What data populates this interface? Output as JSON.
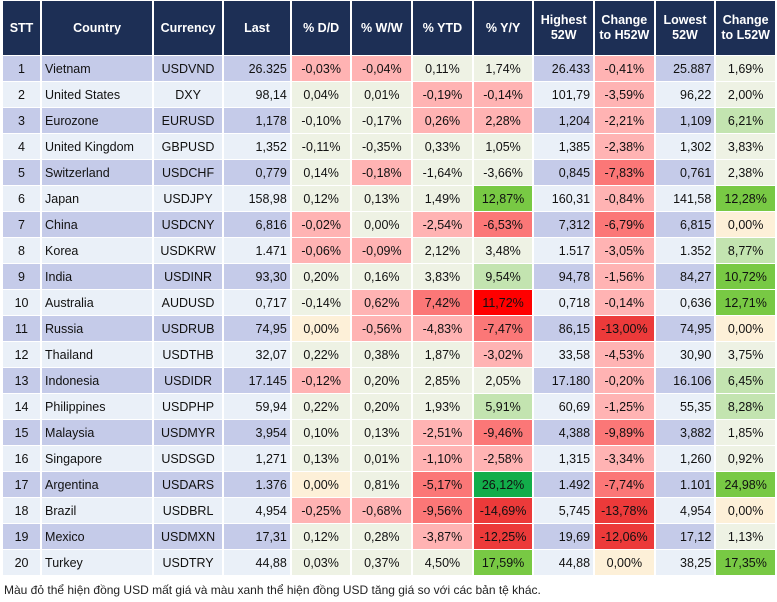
{
  "headers": [
    "STT",
    "Country",
    "Currency",
    "Last",
    "% D/D",
    "% W/W",
    "% YTD",
    "% Y/Y",
    "Highest 52W",
    "Change to H52W",
    "Lowest 52W",
    "Change to L52W"
  ],
  "color_legend": {
    "n": "#eef2e4",
    "y": "#fdf0d8",
    "r1": "#ffb3b3",
    "r2": "#fb7777",
    "r3": "#ec3a3a",
    "r4": "#ff0000",
    "g1": "#c3e4b0",
    "g2": "#78c944",
    "g3": "#12ad4a"
  },
  "rows": [
    {
      "stt": "1",
      "country": "Vietnam",
      "currency": "USDVND",
      "last": "26.325",
      "dd": "-0,03%",
      "ww": "-0,04%",
      "ytd": "0,11%",
      "yy": "1,74%",
      "high": "26.433",
      "chh": "-0,41%",
      "low": "25.887",
      "chl": "1,69%",
      "colors": [
        "r1",
        "r1",
        "n",
        "n",
        "r1",
        "n"
      ]
    },
    {
      "stt": "2",
      "country": "United States",
      "currency": "DXY",
      "last": "98,14",
      "dd": "0,04%",
      "ww": "0,01%",
      "ytd": "-0,19%",
      "yy": "-0,14%",
      "high": "101,79",
      "chh": "-3,59%",
      "low": "96,22",
      "chl": "2,00%",
      "colors": [
        "n",
        "n",
        "r1",
        "r1",
        "r1",
        "n"
      ]
    },
    {
      "stt": "3",
      "country": "Eurozone",
      "currency": "EURUSD",
      "last": "1,178",
      "dd": "-0,10%",
      "ww": "-0,17%",
      "ytd": "0,26%",
      "yy": "2,28%",
      "high": "1,204",
      "chh": "-2,21%",
      "low": "1,109",
      "chl": "6,21%",
      "colors": [
        "n",
        "n",
        "r1",
        "r1",
        "r1",
        "g1"
      ]
    },
    {
      "stt": "4",
      "country": "United Kingdom",
      "currency": "GBPUSD",
      "last": "1,352",
      "dd": "-0,11%",
      "ww": "-0,35%",
      "ytd": "0,33%",
      "yy": "1,05%",
      "high": "1,385",
      "chh": "-2,38%",
      "low": "1,302",
      "chl": "3,83%",
      "colors": [
        "n",
        "n",
        "n",
        "n",
        "r1",
        "n"
      ]
    },
    {
      "stt": "5",
      "country": "Switzerland",
      "currency": "USDCHF",
      "last": "0,779",
      "dd": "0,14%",
      "ww": "-0,18%",
      "ytd": "-1,64%",
      "yy": "-3,66%",
      "high": "0,845",
      "chh": "-7,83%",
      "low": "0,761",
      "chl": "2,38%",
      "colors": [
        "n",
        "r1",
        "n",
        "n",
        "r2",
        "n"
      ]
    },
    {
      "stt": "6",
      "country": "Japan",
      "currency": "USDJPY",
      "last": "158,98",
      "dd": "0,12%",
      "ww": "0,13%",
      "ytd": "1,49%",
      "yy": "12,87%",
      "high": "160,31",
      "chh": "-0,84%",
      "low": "141,58",
      "chl": "12,28%",
      "colors": [
        "n",
        "n",
        "n",
        "g2",
        "r1",
        "g2"
      ]
    },
    {
      "stt": "7",
      "country": "China",
      "currency": "USDCNY",
      "last": "6,816",
      "dd": "-0,02%",
      "ww": "0,00%",
      "ytd": "-2,54%",
      "yy": "-6,53%",
      "high": "7,312",
      "chh": "-6,79%",
      "low": "6,815",
      "chl": "0,00%",
      "colors": [
        "r1",
        "n",
        "r1",
        "r2",
        "r2",
        "y"
      ]
    },
    {
      "stt": "8",
      "country": "Korea",
      "currency": "USDKRW",
      "last": "1.471",
      "dd": "-0,06%",
      "ww": "-0,09%",
      "ytd": "2,12%",
      "yy": "3,48%",
      "high": "1.517",
      "chh": "-3,05%",
      "low": "1.352",
      "chl": "8,77%",
      "colors": [
        "r1",
        "r1",
        "n",
        "n",
        "r1",
        "g1"
      ]
    },
    {
      "stt": "9",
      "country": "India",
      "currency": "USDINR",
      "last": "93,30",
      "dd": "0,20%",
      "ww": "0,16%",
      "ytd": "3,83%",
      "yy": "9,54%",
      "high": "94,78",
      "chh": "-1,56%",
      "low": "84,27",
      "chl": "10,72%",
      "colors": [
        "n",
        "n",
        "n",
        "g1",
        "r1",
        "g2"
      ]
    },
    {
      "stt": "10",
      "country": "Australia",
      "currency": "AUDUSD",
      "last": "0,717",
      "dd": "-0,14%",
      "ww": "0,62%",
      "ytd": "7,42%",
      "yy": "11,72%",
      "high": "0,718",
      "chh": "-0,14%",
      "low": "0,636",
      "chl": "12,71%",
      "colors": [
        "n",
        "r1",
        "r2",
        "r4",
        "r1",
        "g2"
      ]
    },
    {
      "stt": "11",
      "country": "Russia",
      "currency": "USDRUB",
      "last": "74,95",
      "dd": "0,00%",
      "ww": "-0,56%",
      "ytd": "-4,83%",
      "yy": "-7,47%",
      "high": "86,15",
      "chh": "-13,00%",
      "low": "74,95",
      "chl": "0,00%",
      "colors": [
        "y",
        "r1",
        "r1",
        "r2",
        "r3",
        "y"
      ]
    },
    {
      "stt": "12",
      "country": "Thailand",
      "currency": "USDTHB",
      "last": "32,07",
      "dd": "0,22%",
      "ww": "0,38%",
      "ytd": "1,87%",
      "yy": "-3,02%",
      "high": "33,58",
      "chh": "-4,53%",
      "low": "30,90",
      "chl": "3,75%",
      "colors": [
        "n",
        "n",
        "n",
        "r1",
        "r1",
        "n"
      ]
    },
    {
      "stt": "13",
      "country": "Indonesia",
      "currency": "USDIDR",
      "last": "17.145",
      "dd": "-0,12%",
      "ww": "0,20%",
      "ytd": "2,85%",
      "yy": "2,05%",
      "high": "17.180",
      "chh": "-0,20%",
      "low": "16.106",
      "chl": "6,45%",
      "colors": [
        "r1",
        "n",
        "n",
        "n",
        "r1",
        "g1"
      ]
    },
    {
      "stt": "14",
      "country": "Philippines",
      "currency": "USDPHP",
      "last": "59,94",
      "dd": "0,22%",
      "ww": "0,20%",
      "ytd": "1,93%",
      "yy": "5,91%",
      "high": "60,69",
      "chh": "-1,25%",
      "low": "55,35",
      "chl": "8,28%",
      "colors": [
        "n",
        "n",
        "n",
        "g1",
        "r1",
        "g1"
      ]
    },
    {
      "stt": "15",
      "country": "Malaysia",
      "currency": "USDMYR",
      "last": "3,954",
      "dd": "0,10%",
      "ww": "0,13%",
      "ytd": "-2,51%",
      "yy": "-9,46%",
      "high": "4,388",
      "chh": "-9,89%",
      "low": "3,882",
      "chl": "1,85%",
      "colors": [
        "n",
        "n",
        "r1",
        "r2",
        "r2",
        "n"
      ]
    },
    {
      "stt": "16",
      "country": "Singapore",
      "currency": "USDSGD",
      "last": "1,271",
      "dd": "0,13%",
      "ww": "0,01%",
      "ytd": "-1,10%",
      "yy": "-2,58%",
      "high": "1,315",
      "chh": "-3,34%",
      "low": "1,260",
      "chl": "0,92%",
      "colors": [
        "n",
        "n",
        "r1",
        "r1",
        "r1",
        "n"
      ]
    },
    {
      "stt": "17",
      "country": "Argentina",
      "currency": "USDARS",
      "last": "1.376",
      "dd": "0,00%",
      "ww": "0,81%",
      "ytd": "-5,17%",
      "yy": "26,12%",
      "high": "1.492",
      "chh": "-7,74%",
      "low": "1.101",
      "chl": "24,98%",
      "colors": [
        "y",
        "n",
        "r2",
        "g3",
        "r2",
        "g2"
      ]
    },
    {
      "stt": "18",
      "country": "Brazil",
      "currency": "USDBRL",
      "last": "4,954",
      "dd": "-0,25%",
      "ww": "-0,68%",
      "ytd": "-9,56%",
      "yy": "-14,69%",
      "high": "5,745",
      "chh": "-13,78%",
      "low": "4,954",
      "chl": "0,00%",
      "colors": [
        "r1",
        "r1",
        "r2",
        "r3",
        "r3",
        "y"
      ]
    },
    {
      "stt": "19",
      "country": "Mexico",
      "currency": "USDMXN",
      "last": "17,31",
      "dd": "0,12%",
      "ww": "0,28%",
      "ytd": "-3,87%",
      "yy": "-12,25%",
      "high": "19,69",
      "chh": "-12,06%",
      "low": "17,12",
      "chl": "1,13%",
      "colors": [
        "n",
        "n",
        "r1",
        "r3",
        "r3",
        "n"
      ]
    },
    {
      "stt": "20",
      "country": "Turkey",
      "currency": "USDTRY",
      "last": "44,88",
      "dd": "0,03%",
      "ww": "0,37%",
      "ytd": "4,50%",
      "yy": "17,59%",
      "high": "44,88",
      "chh": "0,00%",
      "low": "38,25",
      "chl": "17,35%",
      "colors": [
        "n",
        "n",
        "n",
        "g2",
        "y",
        "g2"
      ]
    }
  ],
  "footnote": "Màu đỏ thể hiện đồng USD mất giá và màu xanh thể hiện đồng USD tăng giá so với các bản tệ khác."
}
